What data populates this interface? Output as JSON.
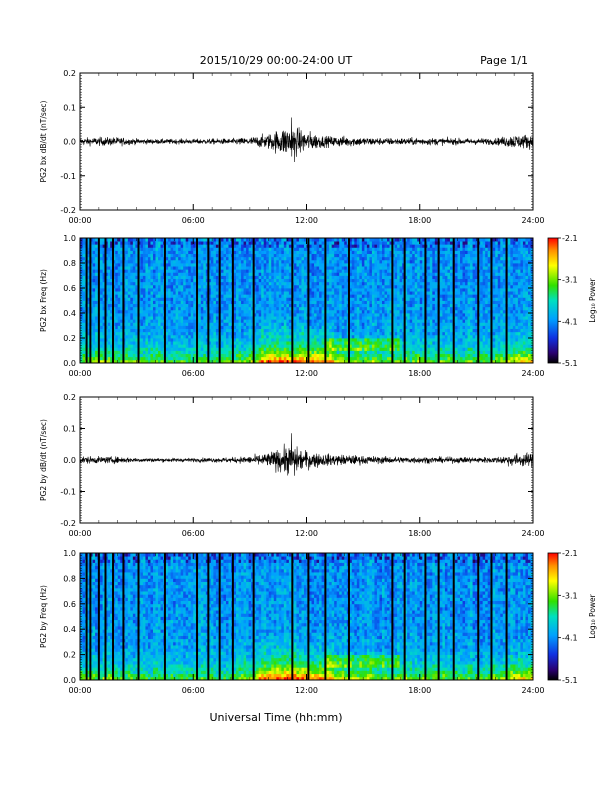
{
  "header": {
    "title": "2015/10/29  00:00-24:00 UT",
    "page": "Page 1/1"
  },
  "xaxis_label": "Universal Time (hh:mm)",
  "colorbar": {
    "ticks": [
      "-2.1",
      "-3.1",
      "-4.1",
      "-5.1"
    ],
    "label": "Log₁₀ Power"
  },
  "chart_data": [
    {
      "type": "line",
      "ylabel": "PG2 bx dB/dt (nT/sec)",
      "xticks": [
        "00:00",
        "06:00",
        "12:00",
        "18:00",
        "24:00"
      ],
      "xlim": [
        0,
        24
      ],
      "yticks": [
        "0.2",
        "0.1",
        "0.0",
        "-0.1",
        "-0.2"
      ],
      "ylim": [
        -0.2,
        0.2
      ],
      "x_units": "hours UT",
      "envelope": {
        "hours": [
          0,
          1,
          2,
          3,
          4,
          5,
          6,
          7,
          8,
          9,
          10,
          11,
          12,
          13,
          14,
          15,
          16,
          17,
          18,
          19,
          20,
          21,
          22,
          23,
          24
        ],
        "amplitude": [
          0.01,
          0.012,
          0.012,
          0.008,
          0.007,
          0.007,
          0.007,
          0.008,
          0.008,
          0.012,
          0.022,
          0.045,
          0.03,
          0.015,
          0.015,
          0.012,
          0.01,
          0.01,
          0.01,
          0.01,
          0.009,
          0.009,
          0.009,
          0.02,
          0.02
        ],
        "peak": [
          0.07,
          -0.06
        ]
      }
    },
    {
      "type": "heatmap",
      "ylabel": "PG2 bx Freq (Hz)",
      "xticks": [
        "00:00",
        "06:00",
        "12:00",
        "18:00",
        "24:00"
      ],
      "xlim": [
        0,
        24
      ],
      "yticks": [
        "1.0",
        "0.8",
        "0.6",
        "0.4",
        "0.2",
        "0.0"
      ],
      "ylim": [
        0,
        1
      ],
      "zlim": [
        -5.1,
        -2.1
      ],
      "data_gaps_hours": [
        0.35,
        0.55,
        1.0,
        1.35,
        1.75,
        2.3,
        3.1,
        4.5,
        6.2,
        6.8,
        7.4,
        8.1,
        9.2,
        11.25,
        12.1,
        13.0,
        14.25,
        16.55,
        17.2,
        18.3,
        19.0,
        19.8,
        21.1,
        21.8,
        22.6
      ]
    },
    {
      "type": "line",
      "ylabel": "PG2 by dB/dt (nT/sec)",
      "xticks": [
        "00:00",
        "06:00",
        "12:00",
        "18:00",
        "24:00"
      ],
      "xlim": [
        0,
        24
      ],
      "yticks": [
        "0.2",
        "0.1",
        "0.0",
        "-0.1",
        "-0.2"
      ],
      "ylim": [
        -0.2,
        0.2
      ],
      "x_units": "hours UT",
      "envelope": {
        "hours": [
          0,
          1,
          2,
          3,
          4,
          5,
          6,
          7,
          8,
          9,
          10,
          11,
          12,
          13,
          14,
          15,
          16,
          17,
          18,
          19,
          20,
          21,
          22,
          23,
          24
        ],
        "amplitude": [
          0.012,
          0.01,
          0.01,
          0.007,
          0.006,
          0.006,
          0.006,
          0.007,
          0.008,
          0.012,
          0.022,
          0.045,
          0.028,
          0.018,
          0.016,
          0.013,
          0.011,
          0.01,
          0.01,
          0.009,
          0.009,
          0.009,
          0.009,
          0.02,
          0.02
        ],
        "peak": [
          0.085,
          -0.05
        ]
      }
    },
    {
      "type": "heatmap",
      "ylabel": "PG2 by Freq (Hz)",
      "xticks": [
        "00:00",
        "06:00",
        "12:00",
        "18:00",
        "24:00"
      ],
      "xlim": [
        0,
        24
      ],
      "yticks": [
        "1.0",
        "0.8",
        "0.6",
        "0.4",
        "0.2",
        "0.0"
      ],
      "ylim": [
        0,
        1
      ],
      "zlim": [
        -5.1,
        -2.1
      ],
      "data_gaps_hours": [
        0.35,
        0.55,
        1.0,
        1.35,
        1.75,
        2.3,
        3.1,
        4.5,
        6.2,
        6.8,
        7.4,
        8.1,
        9.2,
        11.25,
        12.1,
        13.0,
        14.25,
        16.55,
        17.2,
        18.3,
        19.0,
        19.8,
        21.1,
        21.8,
        22.6
      ]
    }
  ]
}
